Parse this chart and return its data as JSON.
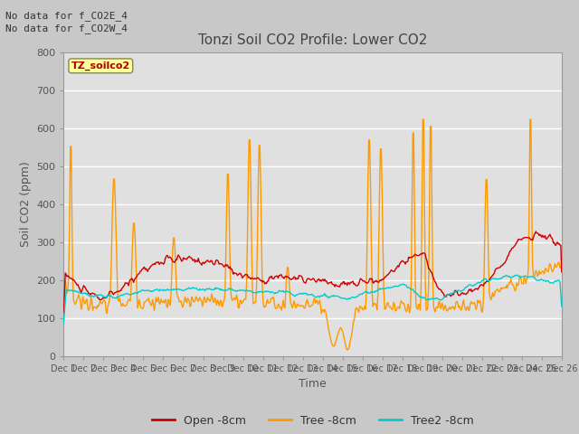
{
  "title": "Tonzi Soil CO2 Profile: Lower CO2",
  "xlabel": "Time",
  "ylabel": "Soil CO2 (ppm)",
  "ylim": [
    0,
    800
  ],
  "yticks": [
    0,
    100,
    200,
    300,
    400,
    500,
    600,
    700,
    800
  ],
  "annotation_text": "No data for f_CO2E_4\nNo data for f_CO2W_4",
  "dataset_label": "TZ_soilco2",
  "legend_entries": [
    "Open -8cm",
    "Tree -8cm",
    "Tree2 -8cm"
  ],
  "line_colors": [
    "#cc0000",
    "#ff9900",
    "#00cccc"
  ],
  "fig_facecolor": "#c8c8c8",
  "ax_facecolor": "#e0e0e0",
  "grid_color": "#ffffff",
  "title_color": "#444444",
  "label_color": "#555555",
  "tick_color": "#555555",
  "n_points": 600
}
